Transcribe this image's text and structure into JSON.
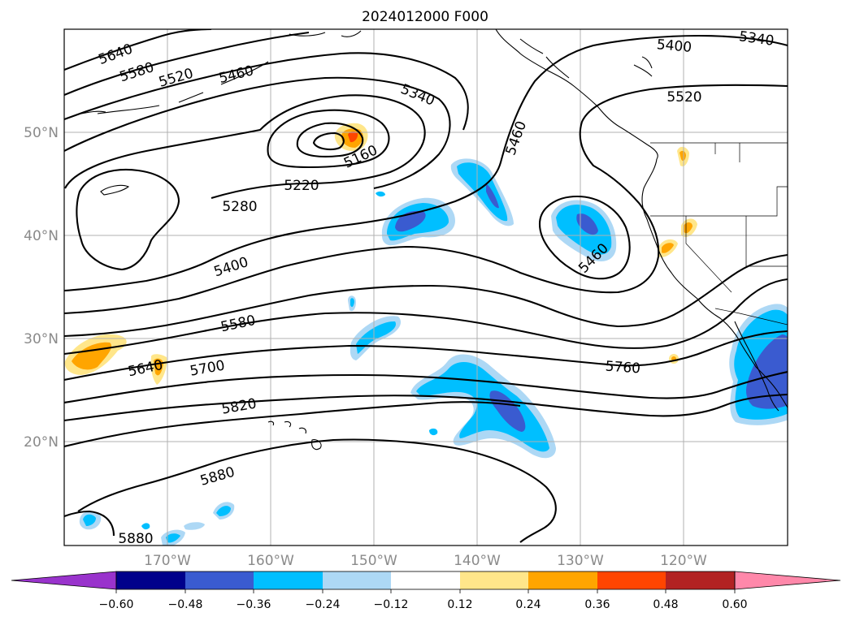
{
  "map": {
    "title": "2024012000 F000",
    "lat_labels": [
      "50°N",
      "40°N",
      "30°N",
      "20°N"
    ],
    "lon_labels": [
      "170°W",
      "160°W",
      "150°W",
      "140°W",
      "130°W",
      "120°W"
    ],
    "contour_labels": [
      "5640",
      "5580",
      "5520",
      "5460",
      "5340",
      "5400",
      "5340",
      "5520",
      "5460",
      "5160",
      "5220",
      "5280",
      "5400",
      "5460",
      "5580",
      "5640",
      "5700",
      "5760",
      "5820",
      "5880",
      "5880"
    ],
    "contour_color": "#000000",
    "coastline_color": "#000000",
    "grid_color": "#b0b0b0"
  },
  "colorbar": {
    "tick_labels": [
      "−0.60",
      "−0.48",
      "−0.36",
      "−0.24",
      "−0.12",
      "0.12",
      "0.24",
      "0.36",
      "0.48",
      "0.60"
    ],
    "colors": [
      "#9933cc",
      "#00008b",
      "#3a5bd0",
      "#00bfff",
      "#add8f5",
      "#ffffff",
      "#ffe68a",
      "#ffa500",
      "#ff4500",
      "#b22222",
      "#ff88aa"
    ]
  }
}
